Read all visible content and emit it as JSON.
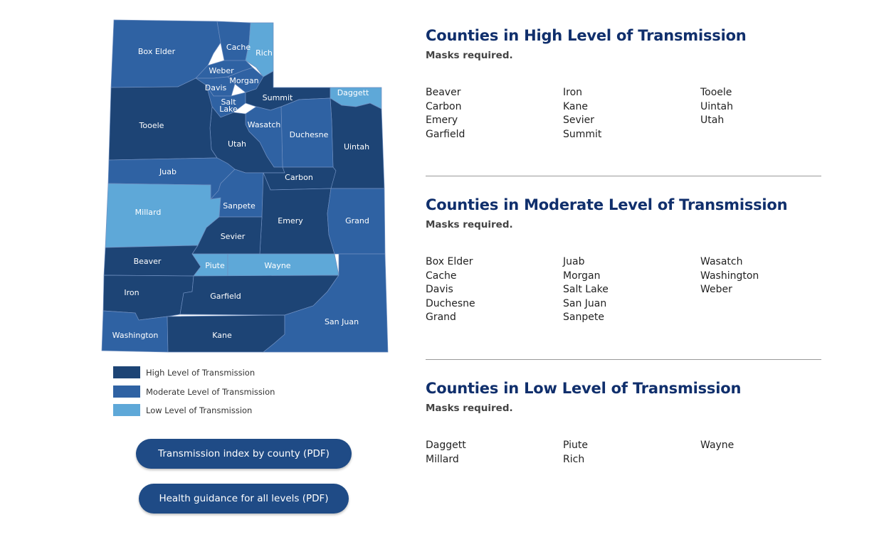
{
  "colors": {
    "high": "#1d4475",
    "moderate": "#2f62a3",
    "low": "#5ea8d8",
    "heading": "#102f6c",
    "button": "#1f4b86"
  },
  "map": {
    "counties": [
      {
        "name": "Box Elder",
        "level": "moderate"
      },
      {
        "name": "Cache",
        "level": "moderate"
      },
      {
        "name": "Rich",
        "level": "low"
      },
      {
        "name": "Weber",
        "level": "moderate"
      },
      {
        "name": "Morgan",
        "level": "moderate"
      },
      {
        "name": "Davis",
        "level": "moderate"
      },
      {
        "name": "Salt Lake",
        "level": "moderate"
      },
      {
        "name": "Summit",
        "level": "high"
      },
      {
        "name": "Daggett",
        "level": "low"
      },
      {
        "name": "Uintah",
        "level": "high"
      },
      {
        "name": "Duchesne",
        "level": "moderate"
      },
      {
        "name": "Wasatch",
        "level": "moderate"
      },
      {
        "name": "Utah",
        "level": "high"
      },
      {
        "name": "Tooele",
        "level": "high"
      },
      {
        "name": "Juab",
        "level": "moderate"
      },
      {
        "name": "Millard",
        "level": "low"
      },
      {
        "name": "Sanpete",
        "level": "moderate"
      },
      {
        "name": "Carbon",
        "level": "high"
      },
      {
        "name": "Emery",
        "level": "high"
      },
      {
        "name": "Grand",
        "level": "moderate"
      },
      {
        "name": "Sevier",
        "level": "high"
      },
      {
        "name": "Beaver",
        "level": "high"
      },
      {
        "name": "Piute",
        "level": "low"
      },
      {
        "name": "Wayne",
        "level": "low"
      },
      {
        "name": "Iron",
        "level": "high"
      },
      {
        "name": "Washington",
        "level": "moderate"
      },
      {
        "name": "Garfield",
        "level": "high"
      },
      {
        "name": "Kane",
        "level": "high"
      },
      {
        "name": "San Juan",
        "level": "moderate"
      }
    ]
  },
  "legend": [
    {
      "label": "High Level of Transmission",
      "level": "high"
    },
    {
      "label": "Moderate Level of Transmission",
      "level": "moderate"
    },
    {
      "label": "Low Level of Transmission",
      "level": "low"
    }
  ],
  "buttons": {
    "transmission_index": "Transmission index by county (PDF)",
    "health_guidance": "Health guidance for all levels (PDF)"
  },
  "sections": [
    {
      "title": "Counties in High Level of Transmission",
      "note": "Masks required.",
      "columns": [
        [
          "Beaver",
          "Carbon",
          "Emery",
          "Garfield"
        ],
        [
          "Iron",
          "Kane",
          "Sevier",
          "Summit"
        ],
        [
          "Tooele",
          "Uintah",
          "Utah"
        ]
      ]
    },
    {
      "title": "Counties in Moderate Level of Transmission",
      "note": "Masks required.",
      "columns": [
        [
          "Box Elder",
          "Cache",
          "Davis",
          "Duchesne",
          "Grand"
        ],
        [
          "Juab",
          "Morgan",
          "Salt Lake",
          "San Juan",
          "Sanpete"
        ],
        [
          "Wasatch",
          "Washington",
          "Weber"
        ]
      ]
    },
    {
      "title": "Counties in Low Level of Transmission",
      "note": "Masks required.",
      "columns": [
        [
          "Daggett",
          "Millard"
        ],
        [
          "Piute",
          "Rich"
        ],
        [
          "Wayne"
        ]
      ]
    }
  ]
}
